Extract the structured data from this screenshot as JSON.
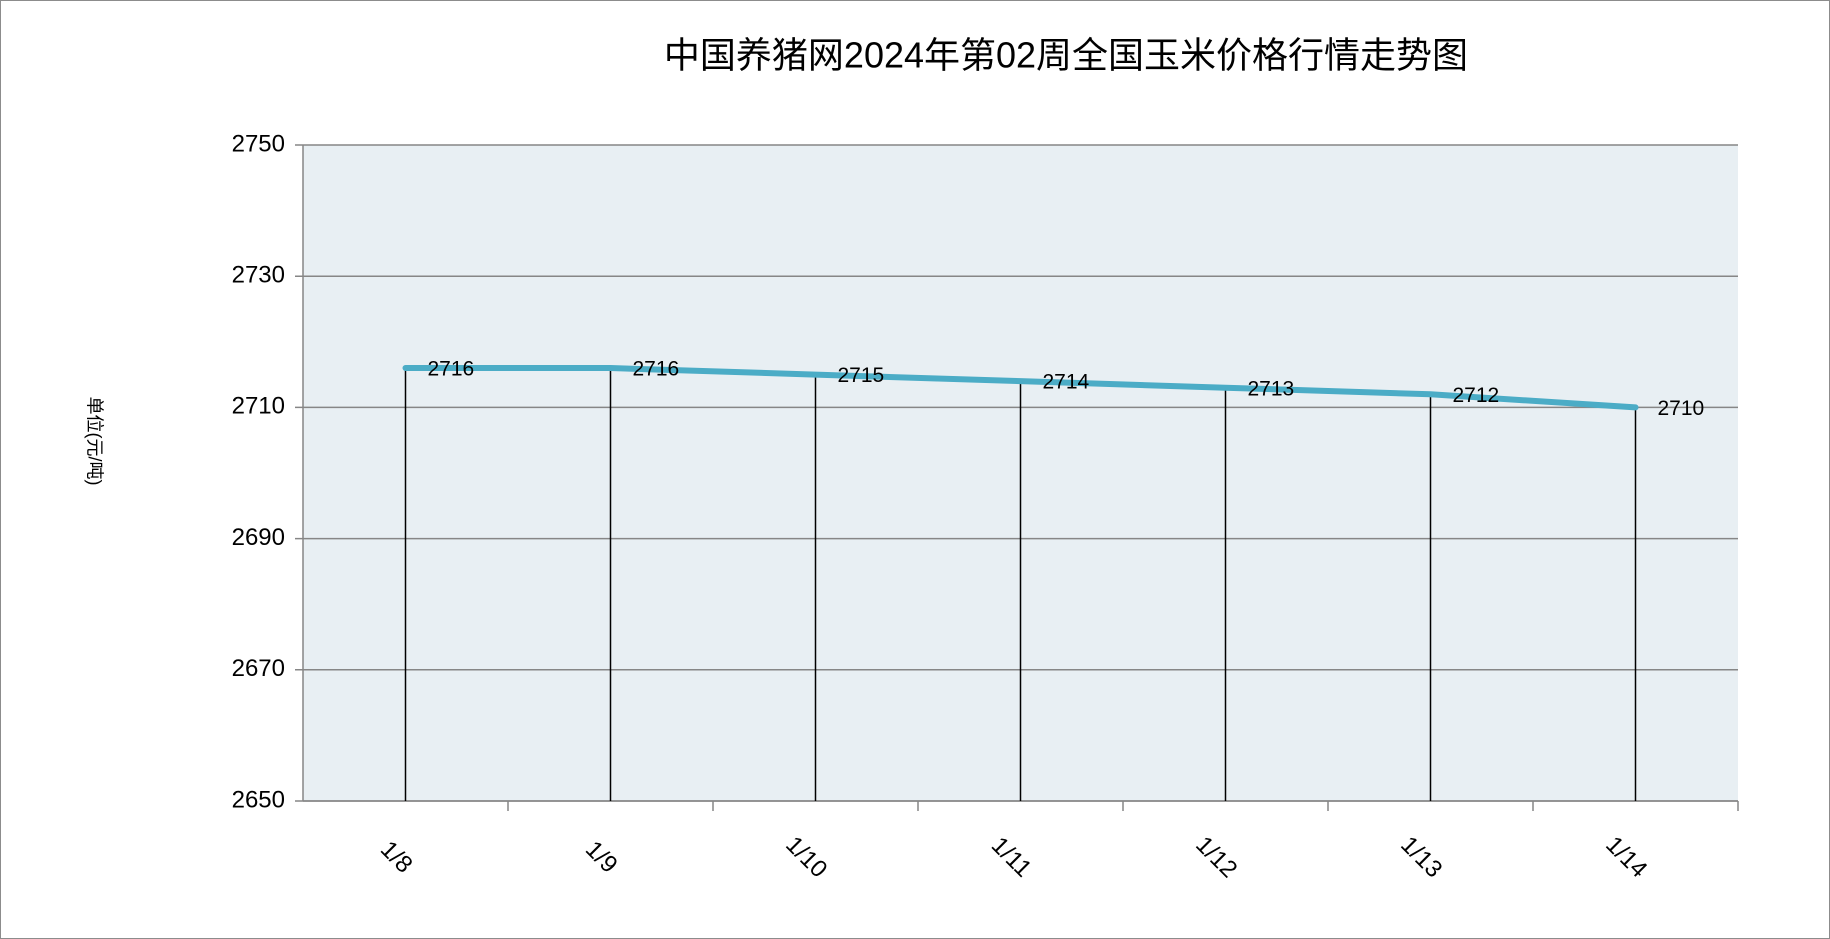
{
  "chart_data": {
    "type": "line",
    "title": "中国养猪网2024年第02周全国玉米价格行情走势图",
    "y_label": "单位(元/吨)",
    "categories": [
      "1/8",
      "1/9",
      "1/10",
      "1/11",
      "1/12",
      "1/13",
      "1/14"
    ],
    "values": [
      2716,
      2716,
      2715,
      2714,
      2713,
      2712,
      2710
    ],
    "color": "#4bacc6",
    "ylim": [
      2650,
      2750
    ],
    "yticks": [
      2650,
      2670,
      2690,
      2710,
      2730,
      2750
    ],
    "grid": true
  }
}
